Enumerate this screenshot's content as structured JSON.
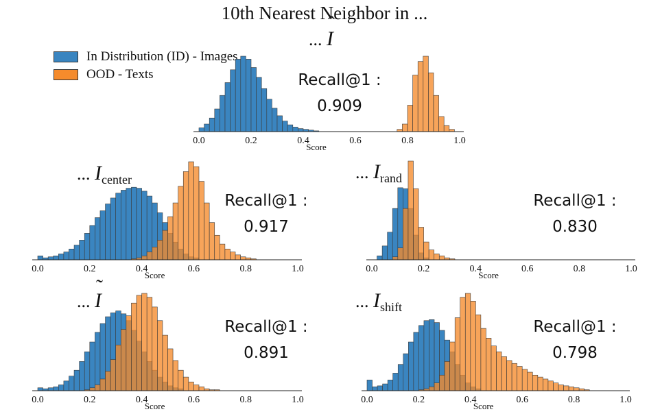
{
  "title": "10th Nearest Neighbor in ...",
  "legend": {
    "items": [
      {
        "label": "In Distribution (ID) - Images",
        "color": "#3a85c0"
      },
      {
        "label": "OOD - Texts",
        "color": "#f58b2c"
      }
    ]
  },
  "colors": {
    "id": "#3a85c0",
    "ood": "#f58b2c",
    "axis": "#222222"
  },
  "chart_data": [
    {
      "type": "histogram",
      "panel_label": {
        "prefix": "...",
        "symbol": "I",
        "accent": "hat",
        "subscript": ""
      },
      "recall": {
        "label": "Recall@1 :",
        "value": "0.909"
      },
      "xlabel": "Score",
      "xlim": [
        0.0,
        1.0
      ],
      "xticks": [
        "0.0",
        "0.2",
        "0.4",
        "0.6",
        "0.8",
        "1.0"
      ],
      "bin_width": 0.02,
      "series": [
        {
          "name": "In Distribution (ID) - Images",
          "bins": [
            [
              0.0,
              0.05
            ],
            [
              0.02,
              0.1
            ],
            [
              0.04,
              0.18
            ],
            [
              0.06,
              0.3
            ],
            [
              0.08,
              0.48
            ],
            [
              0.1,
              0.65
            ],
            [
              0.12,
              0.82
            ],
            [
              0.14,
              0.96
            ],
            [
              0.16,
              1.0
            ],
            [
              0.18,
              0.96
            ],
            [
              0.2,
              0.85
            ],
            [
              0.22,
              0.72
            ],
            [
              0.24,
              0.57
            ],
            [
              0.26,
              0.43
            ],
            [
              0.28,
              0.31
            ],
            [
              0.3,
              0.21
            ],
            [
              0.32,
              0.14
            ],
            [
              0.34,
              0.09
            ],
            [
              0.36,
              0.06
            ],
            [
              0.38,
              0.04
            ],
            [
              0.4,
              0.03
            ],
            [
              0.42,
              0.02
            ],
            [
              0.44,
              0.01
            ]
          ]
        },
        {
          "name": "OOD - Texts",
          "bins": [
            [
              0.76,
              0.03
            ],
            [
              0.78,
              0.1
            ],
            [
              0.8,
              0.35
            ],
            [
              0.82,
              0.75
            ],
            [
              0.84,
              0.93
            ],
            [
              0.86,
              1.0
            ],
            [
              0.88,
              0.78
            ],
            [
              0.9,
              0.48
            ],
            [
              0.92,
              0.2
            ],
            [
              0.94,
              0.08
            ],
            [
              0.96,
              0.03
            ]
          ]
        }
      ]
    },
    {
      "type": "histogram",
      "panel_label": {
        "prefix": "...",
        "symbol": "I",
        "accent": "",
        "subscript": "center"
      },
      "recall": {
        "label": "Recall@1 :",
        "value": "0.917"
      },
      "xlabel": "Score",
      "xlim": [
        0.0,
        1.0
      ],
      "xticks": [
        "0.0",
        "0.2",
        "0.4",
        "0.6",
        "0.8",
        "1.0"
      ],
      "bin_width": 0.02,
      "series": [
        {
          "name": "In Distribution (ID) - Images",
          "bins": [
            [
              0.0,
              0.04
            ],
            [
              0.02,
              0.02
            ],
            [
              0.04,
              0.03
            ],
            [
              0.06,
              0.04
            ],
            [
              0.08,
              0.06
            ],
            [
              0.1,
              0.08
            ],
            [
              0.12,
              0.11
            ],
            [
              0.14,
              0.15
            ],
            [
              0.16,
              0.2
            ],
            [
              0.18,
              0.27
            ],
            [
              0.2,
              0.35
            ],
            [
              0.22,
              0.43
            ],
            [
              0.24,
              0.5
            ],
            [
              0.26,
              0.57
            ],
            [
              0.28,
              0.63
            ],
            [
              0.3,
              0.68
            ],
            [
              0.32,
              0.71
            ],
            [
              0.34,
              0.73
            ],
            [
              0.36,
              0.74
            ],
            [
              0.38,
              0.73
            ],
            [
              0.4,
              0.7
            ],
            [
              0.42,
              0.65
            ],
            [
              0.44,
              0.58
            ],
            [
              0.46,
              0.48
            ],
            [
              0.48,
              0.38
            ],
            [
              0.5,
              0.27
            ],
            [
              0.52,
              0.18
            ],
            [
              0.54,
              0.11
            ],
            [
              0.56,
              0.06
            ],
            [
              0.58,
              0.03
            ],
            [
              0.6,
              0.02
            ]
          ]
        },
        {
          "name": "OOD - Texts",
          "bins": [
            [
              0.36,
              0.01
            ],
            [
              0.38,
              0.02
            ],
            [
              0.4,
              0.04
            ],
            [
              0.42,
              0.08
            ],
            [
              0.44,
              0.13
            ],
            [
              0.46,
              0.2
            ],
            [
              0.48,
              0.3
            ],
            [
              0.5,
              0.44
            ],
            [
              0.52,
              0.58
            ],
            [
              0.54,
              0.75
            ],
            [
              0.56,
              0.9
            ],
            [
              0.58,
              1.0
            ],
            [
              0.6,
              0.95
            ],
            [
              0.62,
              0.8
            ],
            [
              0.64,
              0.58
            ],
            [
              0.66,
              0.38
            ],
            [
              0.68,
              0.25
            ],
            [
              0.7,
              0.16
            ],
            [
              0.72,
              0.11
            ],
            [
              0.74,
              0.08
            ],
            [
              0.76,
              0.05
            ],
            [
              0.78,
              0.03
            ],
            [
              0.8,
              0.02
            ],
            [
              0.82,
              0.01
            ]
          ]
        }
      ]
    },
    {
      "type": "histogram",
      "panel_label": {
        "prefix": "...",
        "symbol": "I",
        "accent": "",
        "subscript": "rand"
      },
      "recall": {
        "label": "Recall@1 :",
        "value": "0.830"
      },
      "xlabel": "Score",
      "xlim": [
        0.0,
        1.0
      ],
      "xticks": [
        "0.0",
        "0.2",
        "0.4",
        "0.6",
        "0.8",
        "1.0"
      ],
      "bin_width": 0.02,
      "series": [
        {
          "name": "In Distribution (ID) - Images",
          "bins": [
            [
              0.02,
              0.04
            ],
            [
              0.04,
              0.14
            ],
            [
              0.06,
              0.28
            ],
            [
              0.08,
              0.52
            ],
            [
              0.1,
              0.73
            ],
            [
              0.12,
              0.72
            ],
            [
              0.14,
              0.52
            ],
            [
              0.16,
              0.25
            ],
            [
              0.18,
              0.07
            ],
            [
              0.2,
              0.02
            ]
          ]
        },
        {
          "name": "OOD - Texts",
          "bins": [
            [
              0.08,
              0.03
            ],
            [
              0.1,
              0.12
            ],
            [
              0.12,
              0.52
            ],
            [
              0.14,
              1.0
            ],
            [
              0.16,
              0.72
            ],
            [
              0.18,
              0.33
            ],
            [
              0.2,
              0.18
            ],
            [
              0.22,
              0.1
            ],
            [
              0.24,
              0.06
            ],
            [
              0.26,
              0.04
            ],
            [
              0.28,
              0.02
            ],
            [
              0.3,
              0.01
            ]
          ]
        }
      ]
    },
    {
      "type": "histogram",
      "panel_label": {
        "prefix": "...",
        "symbol": "I",
        "accent": "tilde",
        "subscript": ""
      },
      "recall": {
        "label": "Recall@1 :",
        "value": "0.891"
      },
      "xlabel": "Score",
      "xlim": [
        0.0,
        1.0
      ],
      "xticks": [
        "0.0",
        "0.2",
        "0.4",
        "0.6",
        "0.8",
        "1.0"
      ],
      "bin_width": 0.02,
      "series": [
        {
          "name": "In Distribution (ID) - Images",
          "bins": [
            [
              0.0,
              0.03
            ],
            [
              0.02,
              0.02
            ],
            [
              0.04,
              0.03
            ],
            [
              0.06,
              0.04
            ],
            [
              0.08,
              0.06
            ],
            [
              0.1,
              0.1
            ],
            [
              0.12,
              0.15
            ],
            [
              0.14,
              0.21
            ],
            [
              0.16,
              0.3
            ],
            [
              0.18,
              0.4
            ],
            [
              0.2,
              0.5
            ],
            [
              0.22,
              0.6
            ],
            [
              0.24,
              0.69
            ],
            [
              0.26,
              0.76
            ],
            [
              0.28,
              0.8
            ],
            [
              0.3,
              0.82
            ],
            [
              0.32,
              0.79
            ],
            [
              0.34,
              0.72
            ],
            [
              0.36,
              0.62
            ],
            [
              0.38,
              0.51
            ],
            [
              0.4,
              0.4
            ],
            [
              0.42,
              0.3
            ],
            [
              0.44,
              0.21
            ],
            [
              0.46,
              0.14
            ],
            [
              0.48,
              0.09
            ],
            [
              0.5,
              0.05
            ],
            [
              0.52,
              0.03
            ],
            [
              0.54,
              0.02
            ]
          ]
        },
        {
          "name": "OOD - Texts",
          "bins": [
            [
              0.18,
              0.01
            ],
            [
              0.2,
              0.03
            ],
            [
              0.22,
              0.06
            ],
            [
              0.24,
              0.12
            ],
            [
              0.26,
              0.2
            ],
            [
              0.28,
              0.32
            ],
            [
              0.3,
              0.47
            ],
            [
              0.32,
              0.63
            ],
            [
              0.34,
              0.77
            ],
            [
              0.36,
              0.9
            ],
            [
              0.38,
              0.98
            ],
            [
              0.4,
              1.0
            ],
            [
              0.42,
              0.96
            ],
            [
              0.44,
              0.86
            ],
            [
              0.46,
              0.72
            ],
            [
              0.48,
              0.57
            ],
            [
              0.5,
              0.43
            ],
            [
              0.52,
              0.31
            ],
            [
              0.54,
              0.21
            ],
            [
              0.56,
              0.14
            ],
            [
              0.58,
              0.09
            ],
            [
              0.6,
              0.06
            ],
            [
              0.62,
              0.04
            ],
            [
              0.64,
              0.02
            ],
            [
              0.66,
              0.01
            ],
            [
              0.68,
              0.01
            ]
          ]
        }
      ]
    },
    {
      "type": "histogram",
      "panel_label": {
        "prefix": "...",
        "symbol": "I",
        "accent": "",
        "subscript": "shift"
      },
      "recall": {
        "label": "Recall@1 :",
        "value": "0.798"
      },
      "xlabel": "Score",
      "xlim": [
        0.0,
        1.0
      ],
      "xticks": [
        "0.0",
        "0.2",
        "0.4",
        "0.6",
        "0.8",
        "1.0"
      ],
      "bin_width": 0.02,
      "series": [
        {
          "name": "In Distribution (ID) - Images",
          "bins": [
            [
              0.0,
              0.11
            ],
            [
              0.02,
              0.04
            ],
            [
              0.04,
              0.05
            ],
            [
              0.06,
              0.07
            ],
            [
              0.08,
              0.11
            ],
            [
              0.1,
              0.18
            ],
            [
              0.12,
              0.27
            ],
            [
              0.14,
              0.38
            ],
            [
              0.16,
              0.5
            ],
            [
              0.18,
              0.6
            ],
            [
              0.2,
              0.67
            ],
            [
              0.22,
              0.72
            ],
            [
              0.24,
              0.73
            ],
            [
              0.26,
              0.7
            ],
            [
              0.28,
              0.62
            ],
            [
              0.3,
              0.52
            ],
            [
              0.32,
              0.4
            ],
            [
              0.34,
              0.27
            ],
            [
              0.36,
              0.16
            ],
            [
              0.38,
              0.08
            ],
            [
              0.4,
              0.04
            ],
            [
              0.42,
              0.02
            ]
          ]
        },
        {
          "name": "OOD - Texts",
          "bins": [
            [
              0.2,
              0.01
            ],
            [
              0.22,
              0.02
            ],
            [
              0.24,
              0.04
            ],
            [
              0.26,
              0.08
            ],
            [
              0.28,
              0.16
            ],
            [
              0.3,
              0.3
            ],
            [
              0.32,
              0.5
            ],
            [
              0.34,
              0.75
            ],
            [
              0.36,
              0.96
            ],
            [
              0.38,
              1.0
            ],
            [
              0.4,
              0.92
            ],
            [
              0.42,
              0.78
            ],
            [
              0.44,
              0.64
            ],
            [
              0.46,
              0.54
            ],
            [
              0.48,
              0.46
            ],
            [
              0.5,
              0.4
            ],
            [
              0.52,
              0.35
            ],
            [
              0.54,
              0.31
            ],
            [
              0.56,
              0.28
            ],
            [
              0.58,
              0.25
            ],
            [
              0.6,
              0.22
            ],
            [
              0.62,
              0.19
            ],
            [
              0.64,
              0.16
            ],
            [
              0.66,
              0.14
            ],
            [
              0.68,
              0.12
            ],
            [
              0.7,
              0.1
            ],
            [
              0.72,
              0.08
            ],
            [
              0.74,
              0.06
            ],
            [
              0.76,
              0.05
            ],
            [
              0.78,
              0.04
            ],
            [
              0.8,
              0.03
            ],
            [
              0.82,
              0.02
            ],
            [
              0.84,
              0.01
            ]
          ]
        }
      ]
    }
  ]
}
